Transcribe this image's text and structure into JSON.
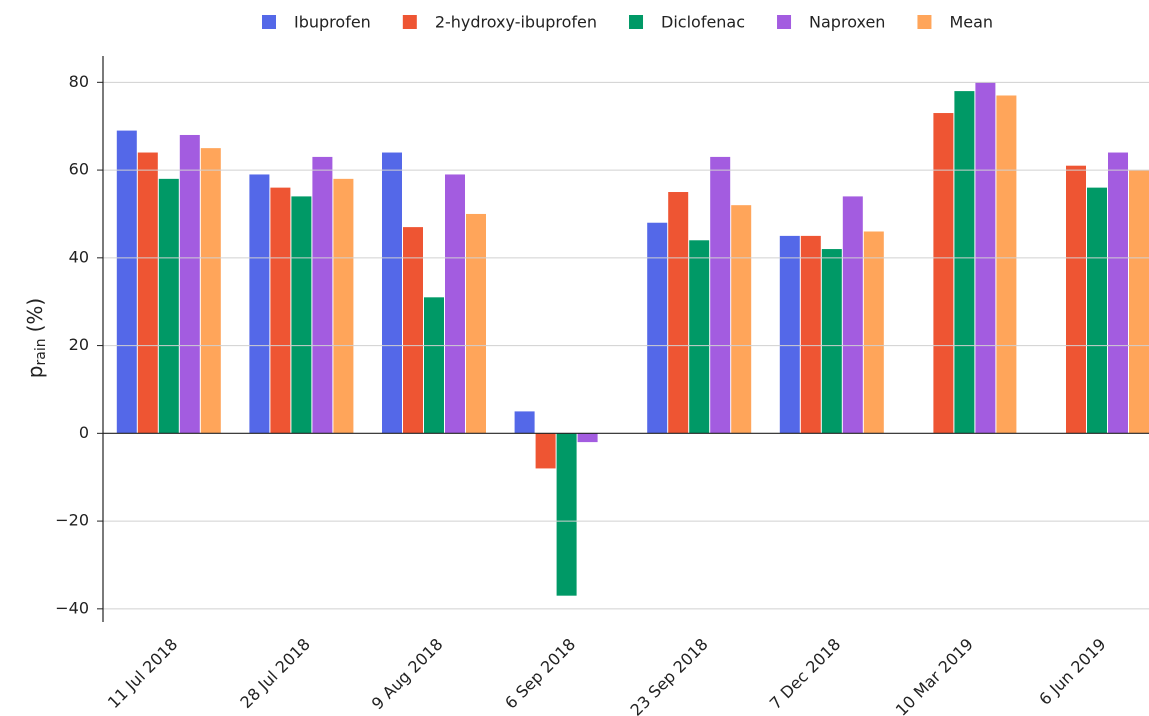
{
  "chart_data": {
    "type": "bar",
    "y_label": {
      "main": "p",
      "sub": "rain",
      "unit": "(%)"
    },
    "categories": [
      "11 Jul 2018",
      "28 Jul 2018",
      "9 Aug 2018",
      "6 Sep 2018",
      "23 Sep 2018",
      "7 Dec 2018",
      "10 Mar 2019",
      "6 Jun 2019"
    ],
    "series": [
      {
        "name": "Ibuprofen",
        "color": "#5468e8",
        "values": [
          69,
          59,
          64,
          5,
          48,
          45,
          null,
          null
        ]
      },
      {
        "name": "2-hydroxy-ibuprofen",
        "color": "#ee5533",
        "values": [
          64,
          56,
          47,
          -8,
          55,
          45,
          73,
          61
        ]
      },
      {
        "name": "Diclofenac",
        "color": "#009966",
        "values": [
          58,
          54,
          31,
          -37,
          44,
          42,
          78,
          56
        ]
      },
      {
        "name": "Naproxen",
        "color": "#a35ce0",
        "values": [
          68,
          63,
          59,
          -2,
          63,
          54,
          80,
          64
        ]
      },
      {
        "name": "Mean",
        "color": "#ffa55a",
        "values": [
          65,
          58,
          50,
          null,
          52,
          46,
          77,
          60
        ]
      }
    ],
    "ylim": [
      -43,
      86
    ],
    "yticks": [
      {
        "value": -40,
        "label": "−40"
      },
      {
        "value": -20,
        "label": "−20"
      },
      0,
      20,
      40,
      60,
      80
    ],
    "grid": true
  }
}
